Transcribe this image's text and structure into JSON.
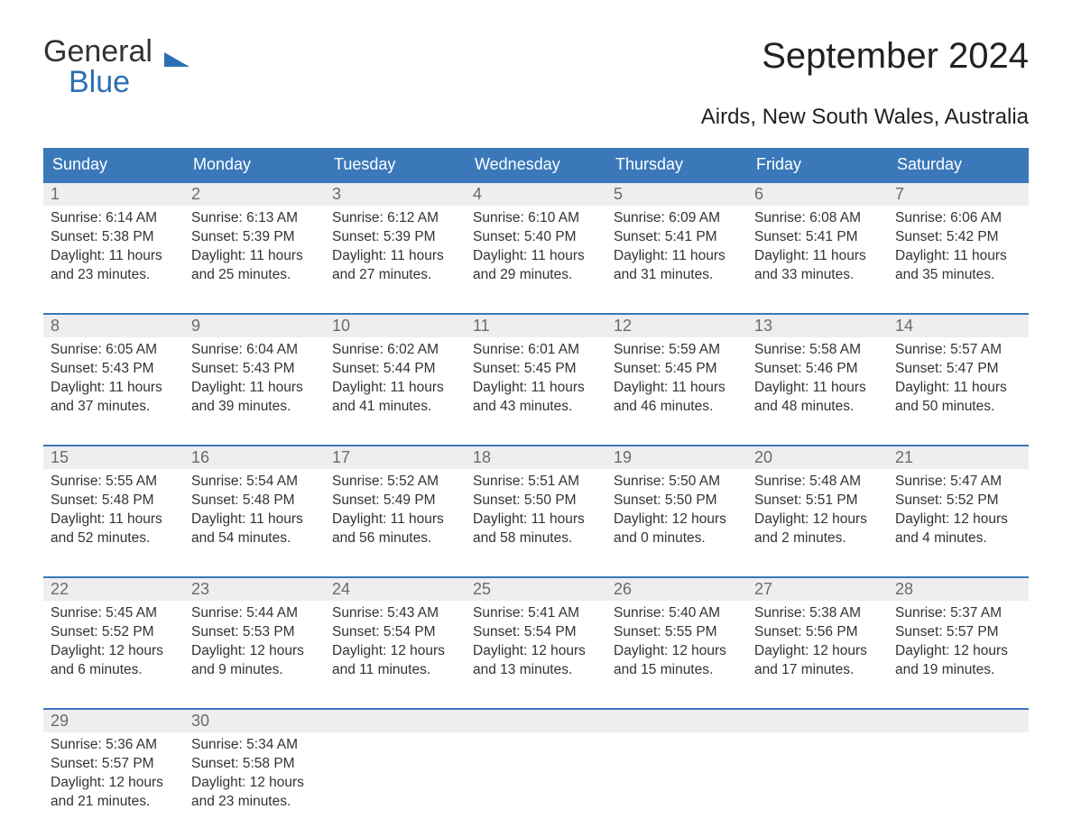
{
  "logo": {
    "text1": "General",
    "text2": "Blue",
    "accent_color": "#2d6fb3"
  },
  "title": "September 2024",
  "location": "Airds, New South Wales, Australia",
  "header_bg": "#3a78b9",
  "header_fg": "#ffffff",
  "daynum_bg": "#eeeeee",
  "daynum_fg": "#6b6b6b",
  "body_color": "#333333",
  "day_headers": [
    "Sunday",
    "Monday",
    "Tuesday",
    "Wednesday",
    "Thursday",
    "Friday",
    "Saturday"
  ],
  "weeks": [
    [
      {
        "n": "1",
        "sunrise": "6:14 AM",
        "sunset": "5:38 PM",
        "daylight": "11 hours and 23 minutes."
      },
      {
        "n": "2",
        "sunrise": "6:13 AM",
        "sunset": "5:39 PM",
        "daylight": "11 hours and 25 minutes."
      },
      {
        "n": "3",
        "sunrise": "6:12 AM",
        "sunset": "5:39 PM",
        "daylight": "11 hours and 27 minutes."
      },
      {
        "n": "4",
        "sunrise": "6:10 AM",
        "sunset": "5:40 PM",
        "daylight": "11 hours and 29 minutes."
      },
      {
        "n": "5",
        "sunrise": "6:09 AM",
        "sunset": "5:41 PM",
        "daylight": "11 hours and 31 minutes."
      },
      {
        "n": "6",
        "sunrise": "6:08 AM",
        "sunset": "5:41 PM",
        "daylight": "11 hours and 33 minutes."
      },
      {
        "n": "7",
        "sunrise": "6:06 AM",
        "sunset": "5:42 PM",
        "daylight": "11 hours and 35 minutes."
      }
    ],
    [
      {
        "n": "8",
        "sunrise": "6:05 AM",
        "sunset": "5:43 PM",
        "daylight": "11 hours and 37 minutes."
      },
      {
        "n": "9",
        "sunrise": "6:04 AM",
        "sunset": "5:43 PM",
        "daylight": "11 hours and 39 minutes."
      },
      {
        "n": "10",
        "sunrise": "6:02 AM",
        "sunset": "5:44 PM",
        "daylight": "11 hours and 41 minutes."
      },
      {
        "n": "11",
        "sunrise": "6:01 AM",
        "sunset": "5:45 PM",
        "daylight": "11 hours and 43 minutes."
      },
      {
        "n": "12",
        "sunrise": "5:59 AM",
        "sunset": "5:45 PM",
        "daylight": "11 hours and 46 minutes."
      },
      {
        "n": "13",
        "sunrise": "5:58 AM",
        "sunset": "5:46 PM",
        "daylight": "11 hours and 48 minutes."
      },
      {
        "n": "14",
        "sunrise": "5:57 AM",
        "sunset": "5:47 PM",
        "daylight": "11 hours and 50 minutes."
      }
    ],
    [
      {
        "n": "15",
        "sunrise": "5:55 AM",
        "sunset": "5:48 PM",
        "daylight": "11 hours and 52 minutes."
      },
      {
        "n": "16",
        "sunrise": "5:54 AM",
        "sunset": "5:48 PM",
        "daylight": "11 hours and 54 minutes."
      },
      {
        "n": "17",
        "sunrise": "5:52 AM",
        "sunset": "5:49 PM",
        "daylight": "11 hours and 56 minutes."
      },
      {
        "n": "18",
        "sunrise": "5:51 AM",
        "sunset": "5:50 PM",
        "daylight": "11 hours and 58 minutes."
      },
      {
        "n": "19",
        "sunrise": "5:50 AM",
        "sunset": "5:50 PM",
        "daylight": "12 hours and 0 minutes."
      },
      {
        "n": "20",
        "sunrise": "5:48 AM",
        "sunset": "5:51 PM",
        "daylight": "12 hours and 2 minutes."
      },
      {
        "n": "21",
        "sunrise": "5:47 AM",
        "sunset": "5:52 PM",
        "daylight": "12 hours and 4 minutes."
      }
    ],
    [
      {
        "n": "22",
        "sunrise": "5:45 AM",
        "sunset": "5:52 PM",
        "daylight": "12 hours and 6 minutes."
      },
      {
        "n": "23",
        "sunrise": "5:44 AM",
        "sunset": "5:53 PM",
        "daylight": "12 hours and 9 minutes."
      },
      {
        "n": "24",
        "sunrise": "5:43 AM",
        "sunset": "5:54 PM",
        "daylight": "12 hours and 11 minutes."
      },
      {
        "n": "25",
        "sunrise": "5:41 AM",
        "sunset": "5:54 PM",
        "daylight": "12 hours and 13 minutes."
      },
      {
        "n": "26",
        "sunrise": "5:40 AM",
        "sunset": "5:55 PM",
        "daylight": "12 hours and 15 minutes."
      },
      {
        "n": "27",
        "sunrise": "5:38 AM",
        "sunset": "5:56 PM",
        "daylight": "12 hours and 17 minutes."
      },
      {
        "n": "28",
        "sunrise": "5:37 AM",
        "sunset": "5:57 PM",
        "daylight": "12 hours and 19 minutes."
      }
    ],
    [
      {
        "n": "29",
        "sunrise": "5:36 AM",
        "sunset": "5:57 PM",
        "daylight": "12 hours and 21 minutes."
      },
      {
        "n": "30",
        "sunrise": "5:34 AM",
        "sunset": "5:58 PM",
        "daylight": "12 hours and 23 minutes."
      },
      {
        "empty": true
      },
      {
        "empty": true
      },
      {
        "empty": true
      },
      {
        "empty": true
      },
      {
        "empty": true
      }
    ]
  ],
  "labels": {
    "sunrise": "Sunrise:",
    "sunset": "Sunset:",
    "daylight": "Daylight:"
  }
}
